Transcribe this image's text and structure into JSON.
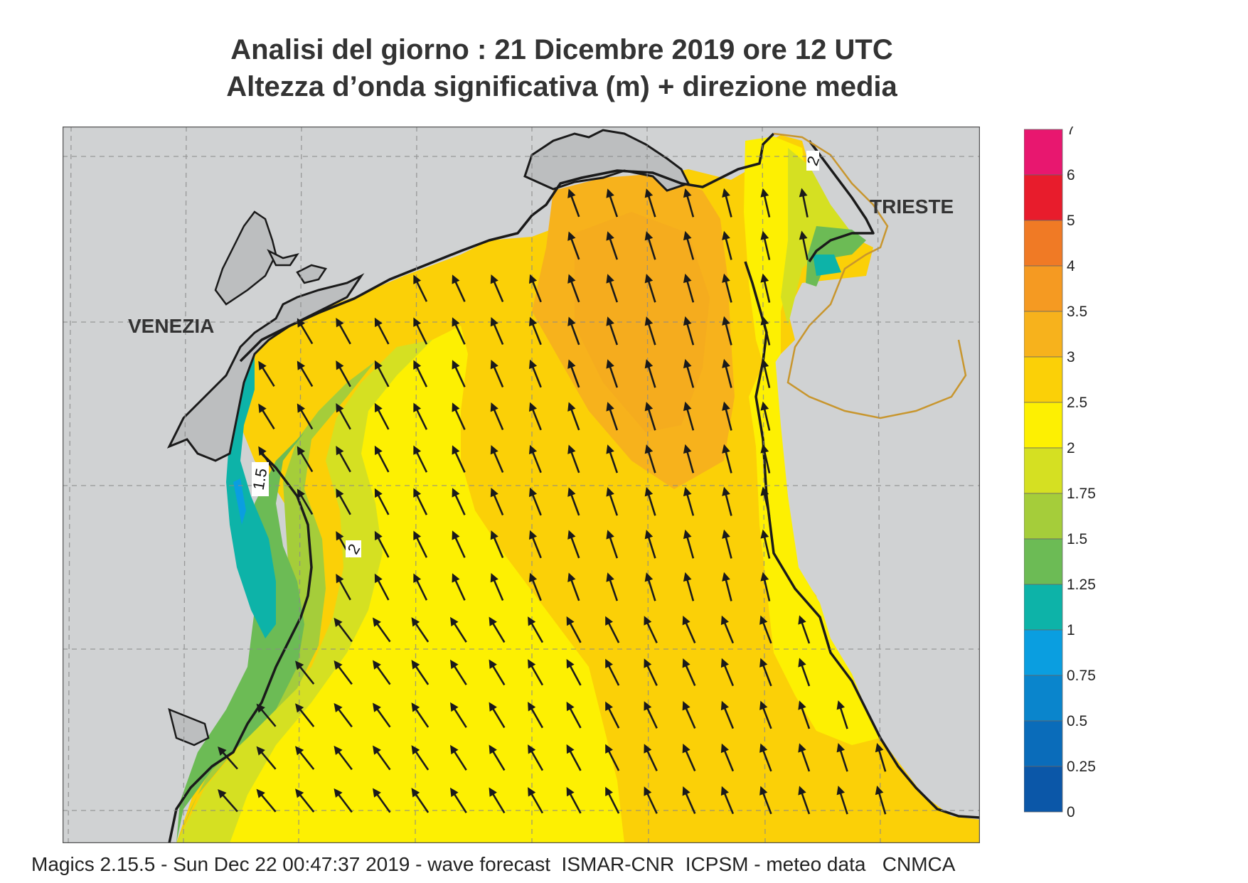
{
  "title": {
    "line1": "Analisi del giorno :  21 Dicembre  2019   ore 12 UTC",
    "line2": "Altezza d’onda significativa (m) + direzione media"
  },
  "map": {
    "cities": [
      "VENEZIA",
      "TRIESTE"
    ],
    "contour_labels": [
      "2",
      "1.5",
      "2"
    ],
    "colors": {
      "land": "#d0d2d3",
      "coast": "#1a1a1a",
      "border": "#c8962e",
      "grid": "#8a8a8a",
      "arrow": "#1a1a1a"
    }
  },
  "legend": {
    "labels": [
      "7",
      "6",
      "5",
      "4",
      "3.5",
      "3",
      "2.5",
      "2",
      "1.75",
      "1.5",
      "1.25",
      "1",
      "0.75",
      "0.5",
      "0.25",
      "0"
    ],
    "colors": [
      "#e8176f",
      "#e81c2c",
      "#f07a25",
      "#f59a22",
      "#f7b21c",
      "#fbd007",
      "#fdf002",
      "#d5e022",
      "#a5cd3a",
      "#6cbb55",
      "#0db3a8",
      "#0a9ee0",
      "#0a85cc",
      "#0a6cba",
      "#0b57a8"
    ]
  },
  "footer": {
    "text": "Magics 2.15.5 - Sun Dec 22 00:47:37 2019 - wave forecast  ISMAR-CNR  ICPSM - meteo data   CNMCA"
  }
}
